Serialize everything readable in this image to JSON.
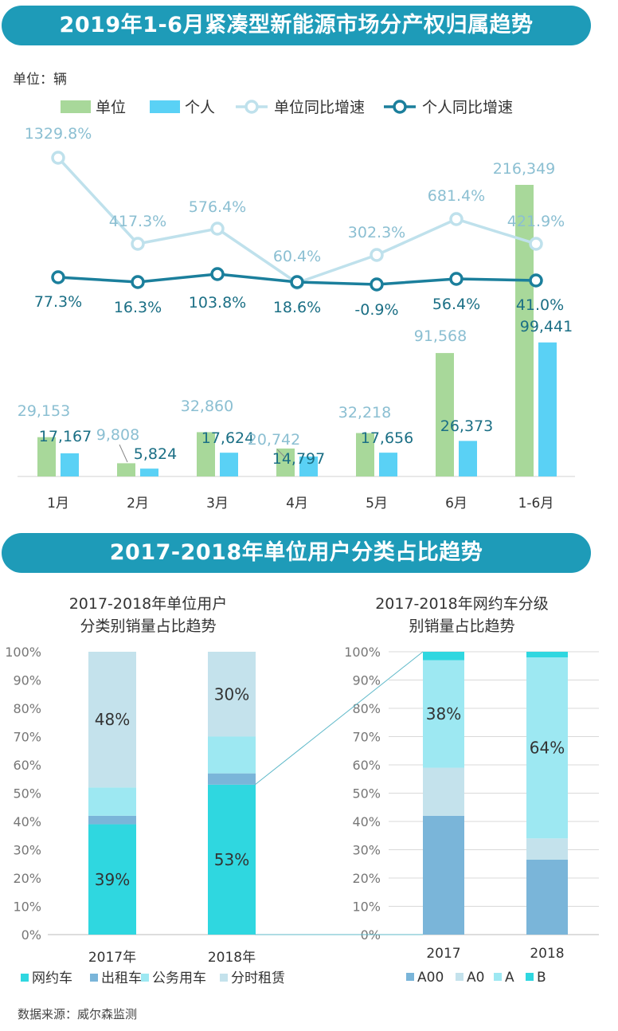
{
  "header": {
    "title1": "2019年1-6月紧凑型新能源市场分产权归属趋势",
    "title2": "2017-2018年单位用户分类占比趋势"
  },
  "source": "数据来源：威尔森监测",
  "colors": {
    "banner": "#1e9bb8",
    "unit_bar": "#a8d89a",
    "personal_bar": "#5ad1f5",
    "unit_line": "#bfe1ec",
    "personal_line": "#1b7f9c",
    "wangyue": "#2fd7e0",
    "chuzu": "#7ab5d9",
    "gongwu": "#9de8f2",
    "fenshi": "#c4e2ec",
    "a00": "#7ab5d9",
    "a0": "#c4e2ec",
    "a": "#9de8f2",
    "b": "#2fd7e0"
  },
  "chart_data": [
    {
      "type": "bar+line",
      "title": "2019年1-6月紧凑型新能源市场分产权归属趋势",
      "unit_label": "单位：辆",
      "categories": [
        "1月",
        "2月",
        "3月",
        "4月",
        "5月",
        "6月",
        "1-6月"
      ],
      "series": [
        {
          "name": "单位",
          "kind": "bar",
          "values": [
            29153,
            9808,
            32860,
            20742,
            32218,
            91568,
            216349
          ],
          "labels": [
            "29,153",
            "9,808",
            "32,860",
            "20,742",
            "32,218",
            "91,568",
            "216,349"
          ]
        },
        {
          "name": "个人",
          "kind": "bar",
          "values": [
            17167,
            5824,
            17624,
            14797,
            17656,
            26373,
            99441
          ],
          "labels": [
            "17,167",
            "5,824",
            "17,624",
            "14,797",
            "17,656",
            "26,373",
            "99,441"
          ]
        },
        {
          "name": "单位同比增速",
          "kind": "line",
          "values": [
            1329.8,
            417.3,
            576.4,
            60.4,
            302.3,
            681.4,
            421.9
          ],
          "labels": [
            "1329.8%",
            "417.3%",
            "576.4%",
            "60.4%",
            "302.3%",
            "681.4%",
            "421.9%"
          ]
        },
        {
          "name": "个人同比增速",
          "kind": "line",
          "values": [
            77.3,
            16.3,
            103.8,
            18.6,
            -0.9,
            56.4,
            41.0
          ],
          "labels": [
            "77.3%",
            "16.3%",
            "103.8%",
            "18.6%",
            "-0.9%",
            "56.4%",
            "41.0%"
          ]
        }
      ]
    },
    {
      "type": "bar",
      "stacked": true,
      "title_lines": [
        "2017-2018年单位用户",
        "分类别销量占比趋势"
      ],
      "categories": [
        "2017年",
        "2018年"
      ],
      "y_ticks": [
        "0%",
        "10%",
        "20%",
        "30%",
        "40%",
        "50%",
        "60%",
        "70%",
        "80%",
        "90%",
        "100%"
      ],
      "series": [
        {
          "name": "网约车",
          "values": [
            39,
            53
          ]
        },
        {
          "name": "出租车",
          "values": [
            3,
            4
          ]
        },
        {
          "name": "公务用车",
          "values": [
            10,
            13
          ]
        },
        {
          "name": "分时租赁",
          "values": [
            48,
            30
          ]
        }
      ],
      "data_labels": [
        {
          "series": "网约车",
          "category": "2017年",
          "text": "39%"
        },
        {
          "series": "网约车",
          "category": "2018年",
          "text": "53%"
        },
        {
          "series": "分时租赁",
          "category": "2017年",
          "text": "48%"
        },
        {
          "series": "分时租赁",
          "category": "2018年",
          "text": "30%"
        }
      ],
      "ylim": [
        0,
        100
      ]
    },
    {
      "type": "bar",
      "stacked": true,
      "title_lines": [
        "2017-2018年网约车分级",
        "别销量占比趋势"
      ],
      "categories": [
        "2017",
        "2018"
      ],
      "y_ticks": [
        "0%",
        "10%",
        "20%",
        "30%",
        "40%",
        "50%",
        "60%",
        "70%",
        "80%",
        "90%",
        "100%"
      ],
      "series": [
        {
          "name": "A00",
          "values": [
            42,
            26.5
          ]
        },
        {
          "name": "A0",
          "values": [
            17,
            7.5
          ]
        },
        {
          "name": "A",
          "values": [
            38,
            64
          ]
        },
        {
          "name": "B",
          "values": [
            3,
            2
          ]
        }
      ],
      "data_labels": [
        {
          "series": "A",
          "category": "2017",
          "text": "38%"
        },
        {
          "series": "A",
          "category": "2018",
          "text": "64%"
        }
      ],
      "ylim": [
        0,
        100
      ]
    }
  ]
}
